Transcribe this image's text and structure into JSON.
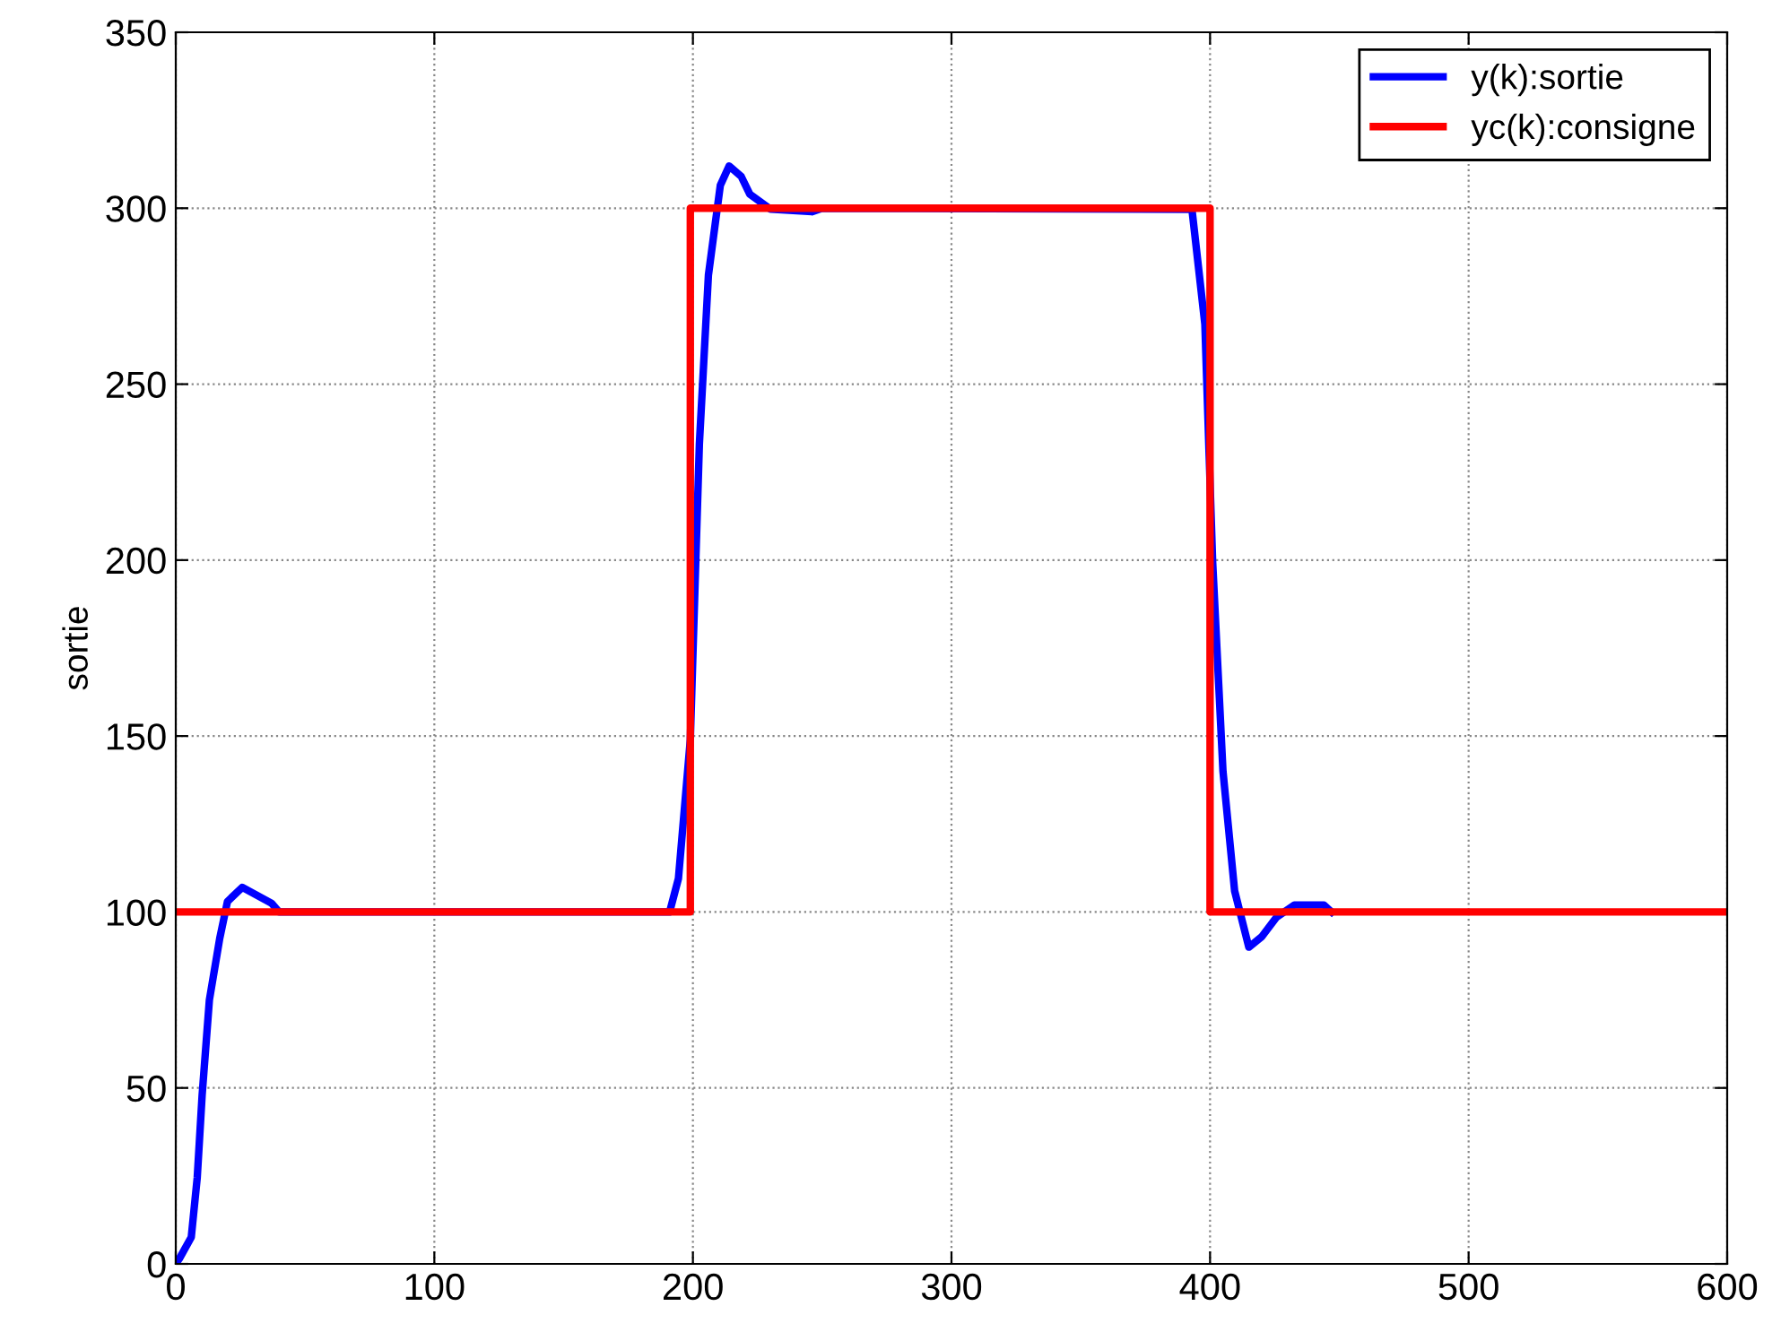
{
  "chart_data": {
    "type": "line",
    "ylabel": "sortie",
    "xlim": [
      0,
      600
    ],
    "xticks": [
      0,
      100,
      200,
      300,
      400,
      500,
      600
    ],
    "ylim": [
      0,
      350
    ],
    "yticks": [
      0,
      50,
      100,
      150,
      200,
      250,
      300,
      350
    ],
    "grid": true,
    "legend": "top right",
    "line_style": "solid",
    "marker": "none",
    "series": [
      {
        "name": "y(k):sortie",
        "color": "#0000ff",
        "x": [
          0,
          1.4,
          6,
          8.3,
          10.2,
          13,
          17,
          20,
          25.7,
          37,
          40,
          191,
          194.4,
          199,
          202.5,
          206,
          210.6,
          214,
          218.7,
          222,
          230,
          246,
          250,
          393,
          398,
          401,
          405,
          409.5,
          415,
          420,
          425.7,
          432.6,
          444,
          447
        ],
        "values": [
          0,
          1.5,
          7.6,
          24.5,
          48,
          75,
          92.5,
          103,
          107,
          102.5,
          100,
          100,
          109.5,
          149,
          233,
          281,
          306.5,
          312,
          309,
          304,
          299.7,
          299,
          300,
          299.7,
          267,
          199.6,
          140,
          106,
          90,
          93,
          98.5,
          102,
          102,
          100
        ]
      },
      {
        "name": "yc(k):consigne",
        "color": "#ff0000",
        "x": [
          0,
          199,
          199,
          400,
          400,
          600
        ],
        "values": [
          100,
          100,
          300,
          300,
          100,
          100
        ]
      }
    ]
  }
}
